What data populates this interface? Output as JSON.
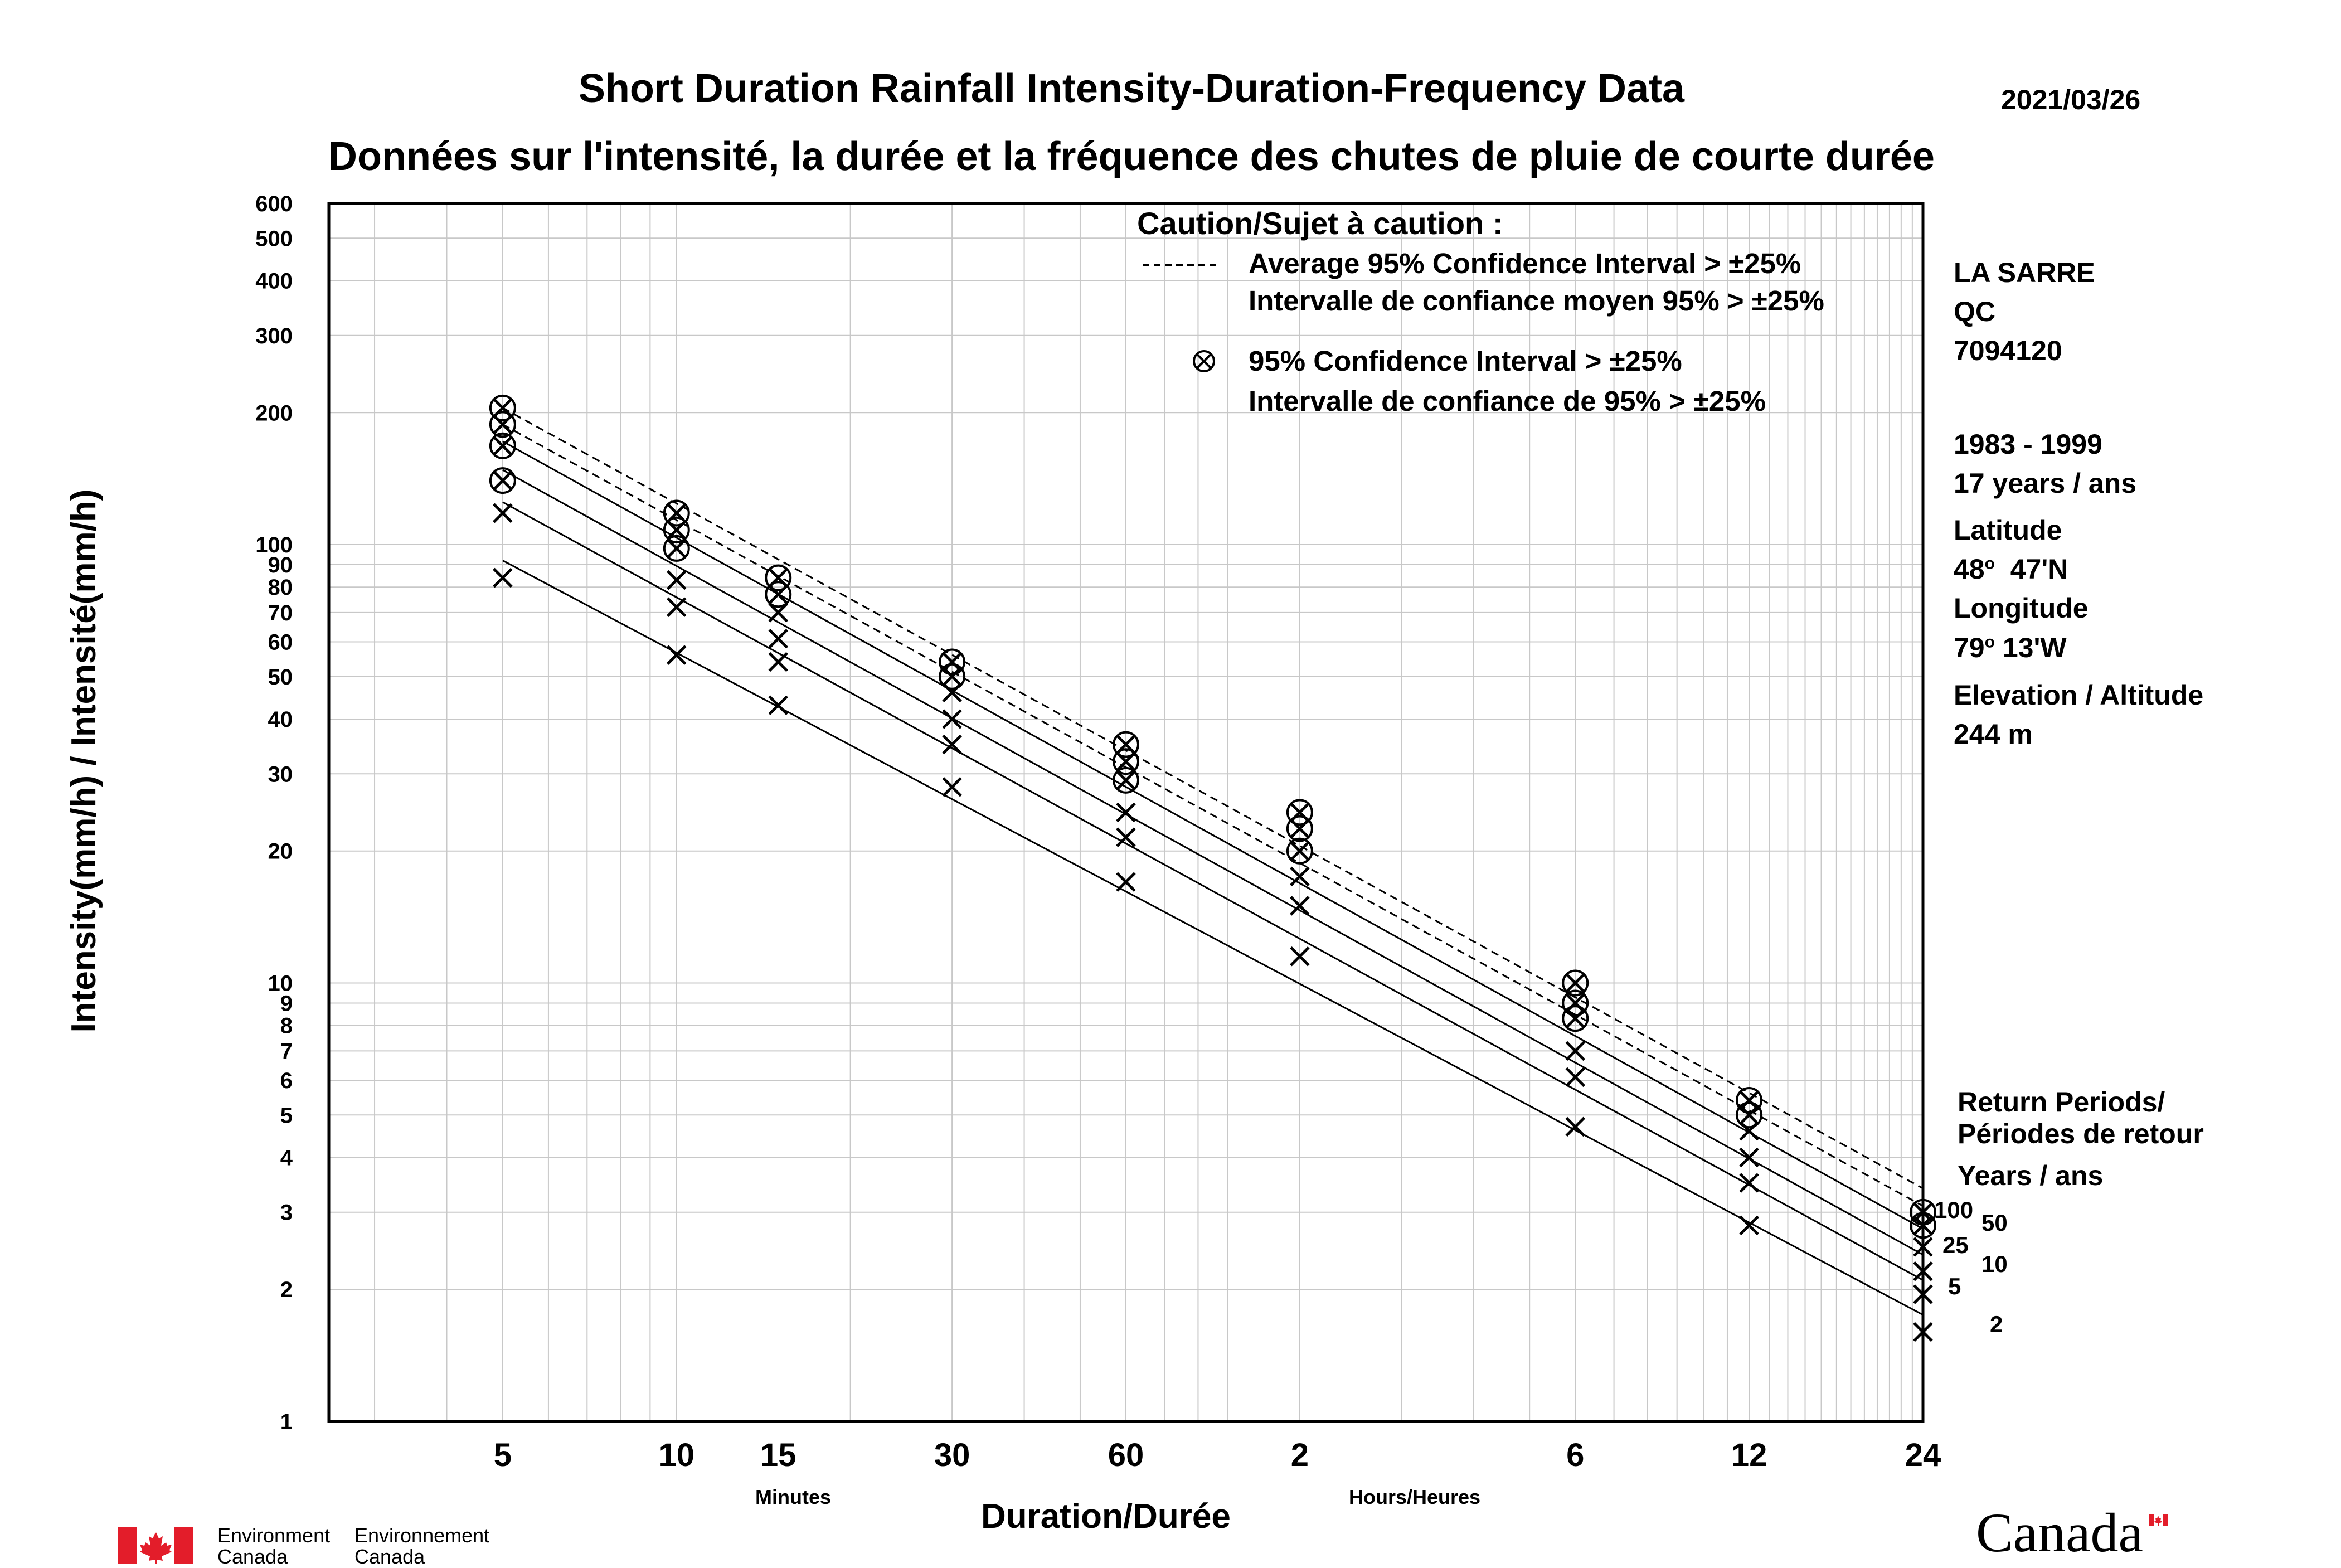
{
  "header": {
    "title_en": "Short Duration Rainfall Intensity-Duration-Frequency Data",
    "title_fr": "Données sur l'intensité, la durée et la fréquence des chutes de pluie de courte durée",
    "date": "2021/03/26"
  },
  "caution": {
    "heading": "Caution/Sujet à caution :",
    "dashed_en": "Average 95% Confidence Interval > ±25%",
    "dashed_fr": "Intervalle de confiance moyen 95% > ±25%",
    "circle_en": "95% Confidence Interval > ±25%",
    "circle_fr": "Intervalle de confiance de 95% > ±25%"
  },
  "station": {
    "name": "LA SARRE",
    "province": "QC",
    "id": "7094120",
    "period": "1983 - 1999",
    "years": "17 years / ans",
    "lat_label": "Latitude",
    "lat_deg": "48",
    "lat_min": "47'N",
    "lon_label": "Longitude",
    "lon_deg": "79",
    "lon_min": "13'W",
    "deg_symbol": "o",
    "elev_label": "Elevation / Altitude",
    "elev_value": "244 m"
  },
  "return_periods": {
    "heading1": "Return Periods/",
    "heading2": "Périodes de retour",
    "heading3": "Years / ans"
  },
  "footer": {
    "dept_en_1": "Environment",
    "dept_en_2": "Canada",
    "dept_fr_1": "Environnement",
    "dept_fr_2": "Canada",
    "wordmark": "Canada"
  },
  "colors": {
    "flag_red": "#e31d2a",
    "grid": "#c8c8c8"
  },
  "chart_data": {
    "type": "line",
    "title": "Short Duration Rainfall Intensity-Duration-Frequency Data",
    "xlabel": "Duration/Durée",
    "ylabel": "Intensity(mm/h) / Intensité(mm/h)",
    "x_scale": "log",
    "y_scale": "log",
    "x_unit_min": "Minutes",
    "x_unit_hr": "Hours/Heures",
    "xlim_minutes": [
      2.5,
      1440
    ],
    "ylim": [
      1,
      600
    ],
    "grid": true,
    "x": [
      5,
      10,
      15,
      30,
      60,
      120,
      360,
      720,
      1440
    ],
    "x_tick_labels": [
      "5",
      "10",
      "15",
      "30",
      "60",
      "2",
      "6",
      "12",
      "24"
    ],
    "y_tick_labels": [
      1,
      2,
      3,
      4,
      5,
      6,
      7,
      8,
      9,
      10,
      20,
      30,
      40,
      50,
      60,
      70,
      80,
      90,
      100,
      200,
      300,
      400,
      500,
      600
    ],
    "series": [
      {
        "name": "2",
        "style": "solid",
        "line": [
          [
            5,
            92
          ],
          [
            1440,
            1.75
          ]
        ],
        "values": [
          84,
          56,
          43,
          28,
          17,
          11.5,
          4.7,
          2.8,
          1.6
        ],
        "flagged": [
          false,
          false,
          false,
          false,
          false,
          false,
          false,
          false,
          false
        ]
      },
      {
        "name": "5",
        "style": "solid",
        "line": [
          [
            5,
            125
          ],
          [
            1440,
            2.1
          ]
        ],
        "values": [
          118,
          72,
          54,
          35,
          21.5,
          15,
          6.1,
          3.5,
          1.95
        ],
        "flagged": [
          false,
          false,
          false,
          false,
          false,
          false,
          false,
          false,
          false
        ]
      },
      {
        "name": "10",
        "style": "solid",
        "line": [
          [
            5,
            148
          ],
          [
            1440,
            2.4
          ]
        ],
        "values": [
          140,
          83,
          61,
          40,
          24.5,
          17.5,
          7,
          4,
          2.2
        ],
        "flagged": [
          true,
          false,
          false,
          false,
          false,
          false,
          false,
          false,
          false
        ]
      },
      {
        "name": "25",
        "style": "solid",
        "line": [
          [
            5,
            172
          ],
          [
            1440,
            2.75
          ]
        ],
        "values": [
          168,
          98,
          70,
          46,
          29,
          20,
          8.3,
          4.6,
          2.5
        ],
        "flagged": [
          true,
          true,
          false,
          false,
          true,
          true,
          true,
          false,
          false
        ]
      },
      {
        "name": "50",
        "style": "dashed",
        "line": [
          [
            5,
            188
          ],
          [
            1440,
            3.1
          ]
        ],
        "values": [
          188,
          108,
          77,
          50,
          32,
          22.5,
          9,
          5,
          2.8
        ],
        "flagged": [
          true,
          true,
          true,
          true,
          true,
          true,
          true,
          true,
          true
        ]
      },
      {
        "name": "100",
        "style": "dashed",
        "line": [
          [
            5,
            205
          ],
          [
            1440,
            3.4
          ]
        ],
        "values": [
          205,
          118,
          84,
          54,
          35,
          24.5,
          10,
          5.4,
          3
        ],
        "flagged": [
          true,
          true,
          true,
          true,
          true,
          true,
          true,
          true,
          true
        ]
      }
    ]
  }
}
